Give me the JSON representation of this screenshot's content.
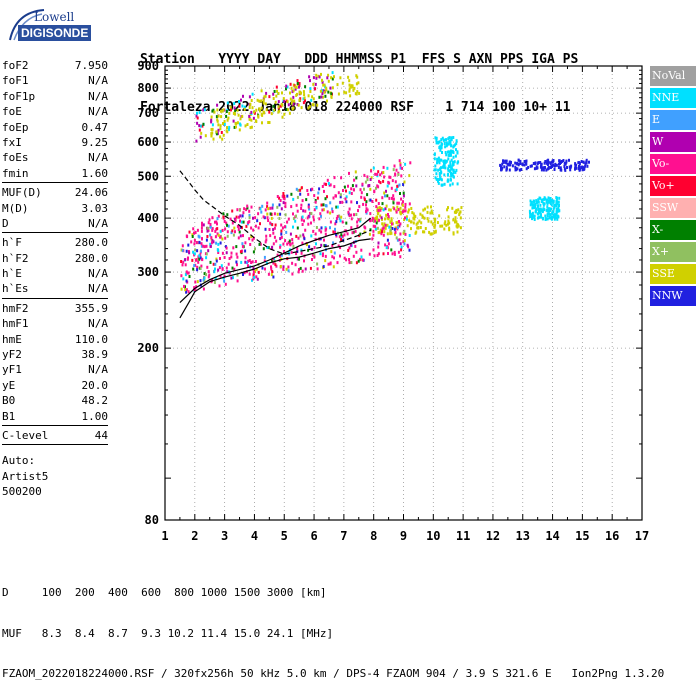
{
  "logo": {
    "line1": "Lowell",
    "line2": "DIGISONDE"
  },
  "header": {
    "line1": "Station   YYYY DAY   DDD HHMMSS P1  FFS S AXN PPS IGA PS",
    "line2": "Fortaleza 2022 Jan18 018 224000 RSF    1 714 100 10+ 11"
  },
  "params": {
    "group1": [
      {
        "name": "foF2",
        "value": "7.950"
      },
      {
        "name": "foF1",
        "value": "N/A"
      },
      {
        "name": "foF1p",
        "value": "N/A"
      },
      {
        "name": "foE",
        "value": "N/A"
      },
      {
        "name": "foEp",
        "value": "0.47"
      },
      {
        "name": "fxI",
        "value": "9.25"
      },
      {
        "name": "foEs",
        "value": "N/A"
      },
      {
        "name": "fmin",
        "value": "1.60"
      }
    ],
    "group2": [
      {
        "name": "MUF(D)",
        "value": "24.06"
      },
      {
        "name": "M(D)",
        "value": "3.03"
      },
      {
        "name": "D",
        "value": "N/A"
      }
    ],
    "group3": [
      {
        "name": "h`F",
        "value": "280.0"
      },
      {
        "name": "h`F2",
        "value": "280.0"
      },
      {
        "name": "h`E",
        "value": "N/A"
      },
      {
        "name": "h`Es",
        "value": "N/A"
      }
    ],
    "group4": [
      {
        "name": "hmF2",
        "value": "355.9"
      },
      {
        "name": "hmF1",
        "value": "N/A"
      },
      {
        "name": "hmE",
        "value": "110.0"
      },
      {
        "name": "yF2",
        "value": "38.9"
      },
      {
        "name": "yF1",
        "value": "N/A"
      },
      {
        "name": "yE",
        "value": "20.0"
      },
      {
        "name": "B0",
        "value": "48.2"
      },
      {
        "name": "B1",
        "value": "1.00"
      }
    ],
    "clevel": {
      "name": "C-level",
      "value": "44"
    },
    "auto": [
      "Auto:",
      "Artist5",
      "500200"
    ]
  },
  "legend": [
    {
      "label": "NoVal",
      "color": "#a0a0a0"
    },
    {
      "label": "NNE",
      "color": "#00e0ff"
    },
    {
      "label": "E",
      "color": "#40a0ff"
    },
    {
      "label": "W",
      "color": "#b000b0"
    },
    {
      "label": "Vo-",
      "color": "#ff1090"
    },
    {
      "label": "Vo+",
      "color": "#ff0030"
    },
    {
      "label": "SSW",
      "color": "#ffb0b0"
    },
    {
      "label": "X-",
      "color": "#008000"
    },
    {
      "label": "X+",
      "color": "#90c060"
    },
    {
      "label": "SSE",
      "color": "#d0d000"
    },
    {
      "label": "NNW",
      "color": "#2020e0"
    }
  ],
  "bottom": {
    "line1": "D     100  200  400  600  800 1000 1500 3000 [km]",
    "line2": "MUF   8.3  8.4  8.7  9.3 10.2 11.4 15.0 24.1 [MHz]",
    "line3": "FZAOM_2022018224000.RSF / 320fx256h 50 kHz 5.0 km / DPS-4 FZAOM 904 / 3.9 S 321.6 E   Ion2Png 1.3.20"
  },
  "chart_data": {
    "type": "scatter",
    "x_label": "",
    "y_label": "",
    "xlim": [
      1,
      17
    ],
    "ylim": [
      80,
      900
    ],
    "x_ticks": [
      1,
      2,
      3,
      4,
      5,
      6,
      7,
      8,
      9,
      10,
      11,
      12,
      13,
      14,
      15,
      16,
      17
    ],
    "y_ticks": [
      80,
      200,
      300,
      400,
      500,
      600,
      700,
      800,
      900
    ],
    "y_scale": "log",
    "clusters": [
      {
        "name": "NNE",
        "x_range": [
          10.0,
          10.8
        ],
        "y_range": [
          480,
          620
        ]
      },
      {
        "name": "NNE",
        "x_range": [
          13.2,
          14.2
        ],
        "y_range": [
          400,
          450
        ]
      },
      {
        "name": "NNW",
        "x_range": [
          12.2,
          15.2
        ],
        "y_range": [
          520,
          550
        ]
      },
      {
        "name": "SSE",
        "x_range": [
          8.0,
          11.0
        ],
        "y_range": [
          370,
          430
        ]
      },
      {
        "name": "Vo-",
        "x_range": [
          1.5,
          9.2
        ],
        "y_range": [
          270,
          590
        ]
      },
      {
        "name": "W",
        "x_range": [
          2.0,
          6.6
        ],
        "y_range": [
          600,
          850
        ]
      },
      {
        "name": "SSE",
        "x_range": [
          2.5,
          7.5
        ],
        "y_range": [
          600,
          820
        ]
      }
    ],
    "traces": [
      {
        "name": "virtual-height (solid)",
        "x": [
          1.5,
          2.0,
          2.5,
          3.0,
          3.5,
          4.0,
          4.5,
          5.0,
          5.5,
          6.0,
          6.5,
          7.0,
          7.5,
          7.9
        ],
        "y": [
          255,
          275,
          288,
          298,
          304,
          310,
          320,
          332,
          345,
          355,
          365,
          372,
          380,
          400
        ]
      },
      {
        "name": "profile (dashed)",
        "x": [
          1.5,
          1.8,
          2.0,
          2.3,
          2.7,
          3.0,
          3.5,
          4.0,
          4.5,
          5.0,
          5.5,
          6.0,
          6.5,
          7.0,
          7.5,
          7.9
        ],
        "y": [
          515,
          485,
          465,
          440,
          420,
          405,
          385,
          360,
          340,
          330,
          335,
          340,
          345,
          355,
          365,
          375
        ]
      },
      {
        "name": "real-height low",
        "x": [
          1.5,
          1.8,
          2.0,
          2.5,
          3.0,
          3.5,
          4.0,
          4.5,
          5.0,
          5.5,
          6.0,
          6.5,
          7.0,
          7.5,
          7.9
        ],
        "y": [
          235,
          255,
          270,
          285,
          292,
          298,
          305,
          315,
          322,
          325,
          332,
          340,
          345,
          355,
          358
        ]
      }
    ]
  }
}
